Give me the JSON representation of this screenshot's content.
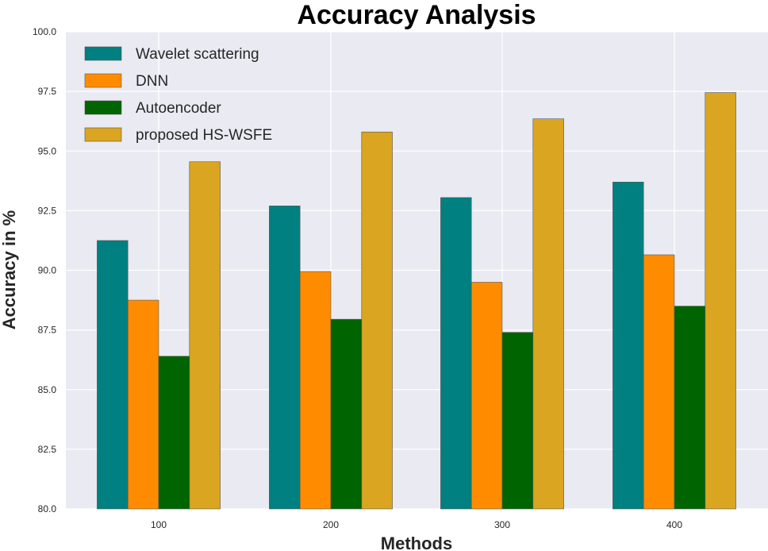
{
  "chart_data": {
    "type": "bar",
    "title": "Accuracy Analysis",
    "xlabel": "Methods",
    "ylabel": "Accuracy in %",
    "categories": [
      "100",
      "200",
      "300",
      "400"
    ],
    "ylim": [
      80.0,
      100.0
    ],
    "yticks": [
      "80.0",
      "82.5",
      "85.0",
      "87.5",
      "90.0",
      "92.5",
      "95.0",
      "97.5",
      "100.0"
    ],
    "grid": true,
    "legend_position": "top-left",
    "background_color": "#EAEAF2",
    "grid_color": "#FFFFFF",
    "series": [
      {
        "name": "Wavelet scattering",
        "color": "#008080",
        "values": [
          91.25,
          92.7,
          93.05,
          93.7
        ]
      },
      {
        "name": "DNN",
        "color": "#FF8C00",
        "values": [
          88.75,
          89.95,
          89.5,
          90.65
        ]
      },
      {
        "name": "Autoencoder",
        "color": "#006400",
        "values": [
          86.4,
          87.95,
          87.4,
          88.5
        ]
      },
      {
        "name": "proposed HS-WSFE",
        "color": "#DAA520",
        "values": [
          94.55,
          95.8,
          96.35,
          97.45
        ]
      }
    ]
  }
}
